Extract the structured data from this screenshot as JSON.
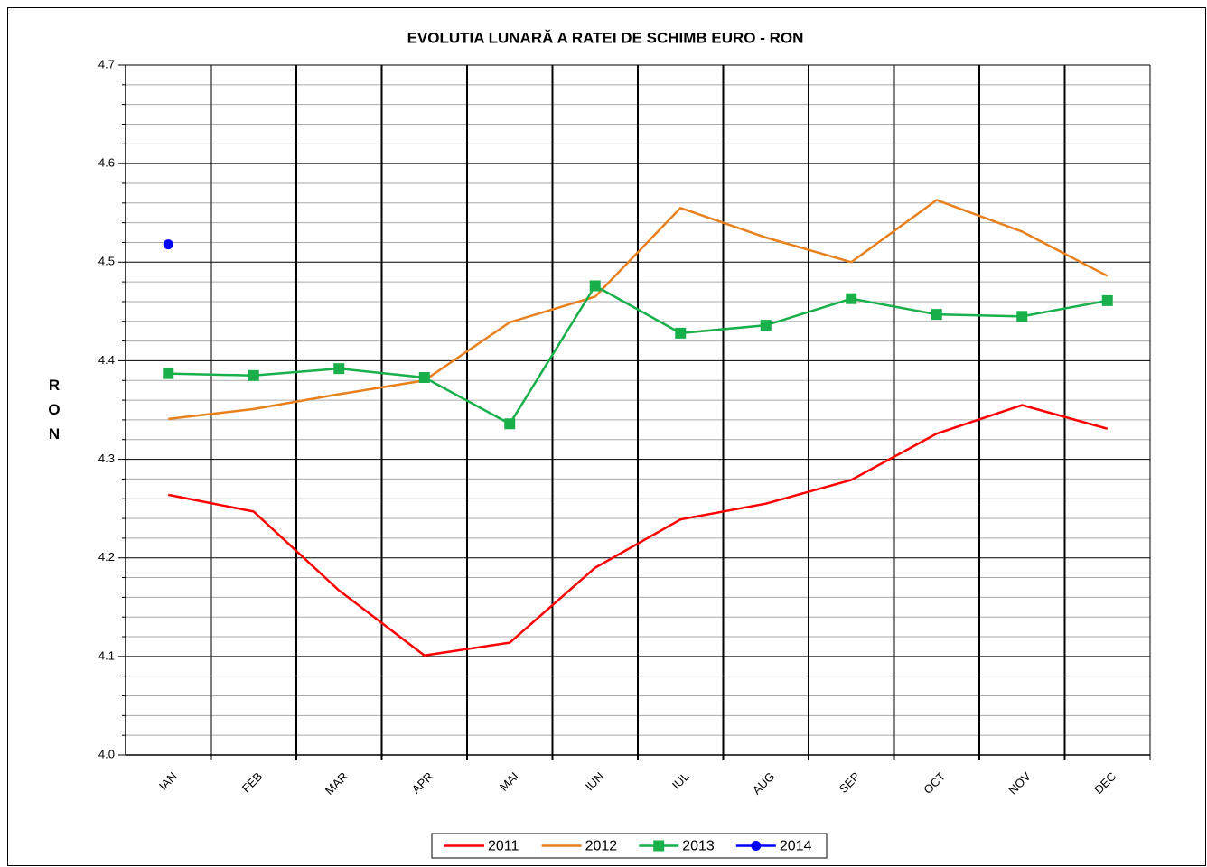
{
  "chart_data": {
    "type": "line",
    "title": "EVOLUTIA LUNARĂ A RATEI DE SCHIMB EURO - RON",
    "y_label": "RON",
    "categories": [
      "IAN",
      "FEB",
      "MAR",
      "APR",
      "MAI",
      "IUN",
      "IUL",
      "AUG",
      "SEP",
      "OCT",
      "NOV",
      "DEC"
    ],
    "ylim": [
      4.0,
      4.7
    ],
    "yticks": [
      {
        "value": 4,
        "label": "4.0"
      },
      4.1,
      4.2,
      4.3,
      4.4,
      4.5,
      4.6,
      4.7
    ],
    "grid": true,
    "minor_grid": true,
    "legend": "bottom",
    "series": [
      {
        "name": "2011",
        "color": "#ff0000",
        "marker": "none",
        "values": [
          4.264,
          4.247,
          4.167,
          4.101,
          4.114,
          4.19,
          4.239,
          4.255,
          4.279,
          4.326,
          4.355,
          4.331
        ]
      },
      {
        "name": "2012",
        "color": "#e8801e",
        "marker": "none",
        "values": [
          4.341,
          4.351,
          4.366,
          4.38,
          4.439,
          4.465,
          4.555,
          4.525,
          4.5,
          4.563,
          4.531,
          4.486
        ]
      },
      {
        "name": "2013",
        "color": "#19b04b",
        "marker": "square",
        "values": [
          4.387,
          4.385,
          4.392,
          4.383,
          4.336,
          4.476,
          4.428,
          4.436,
          4.463,
          4.447,
          4.445,
          4.461
        ]
      },
      {
        "name": "2014",
        "color": "#0000ff",
        "marker": "circle",
        "values": [
          4.518,
          null,
          null,
          null,
          null,
          null,
          null,
          null,
          null,
          null,
          null,
          null
        ]
      }
    ]
  }
}
